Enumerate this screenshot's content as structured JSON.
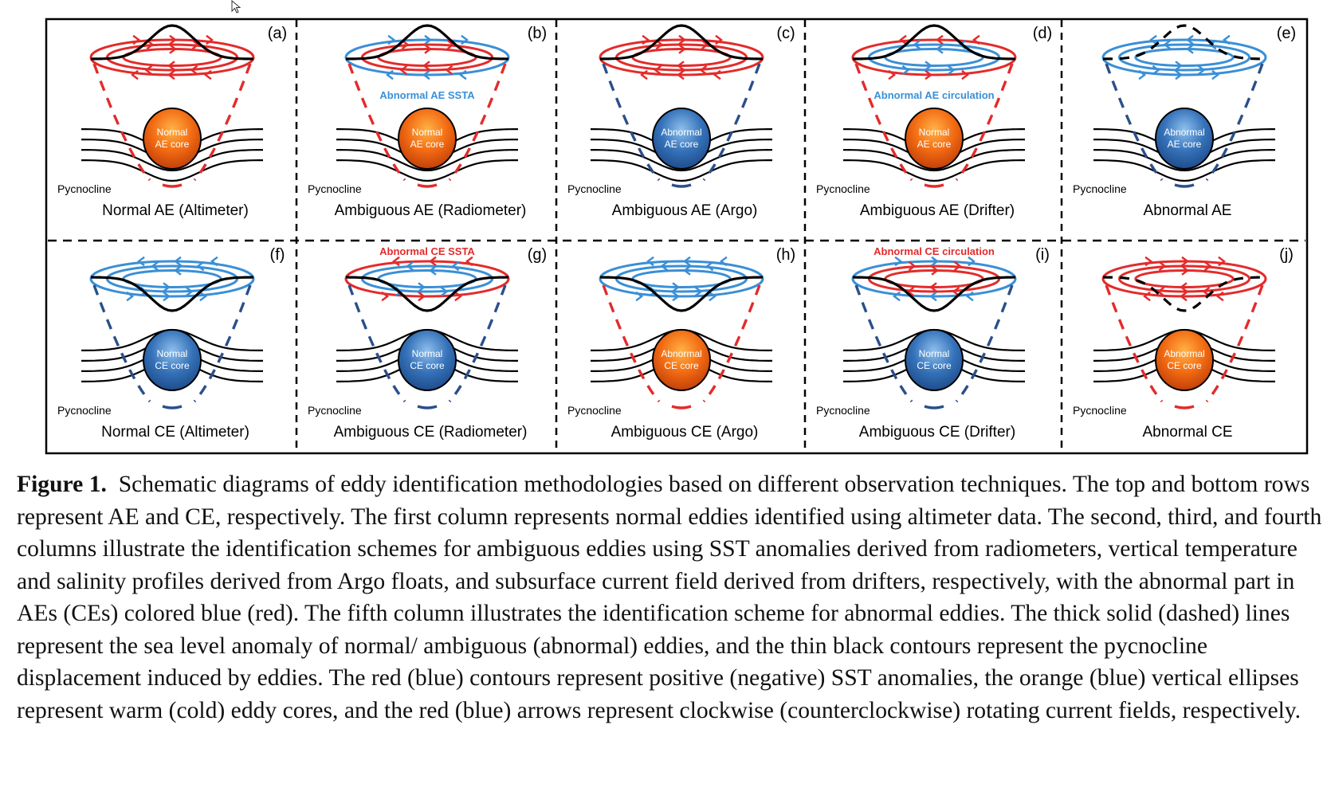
{
  "figure": {
    "top_row": [
      {
        "letter": "(a)",
        "title": "Normal AE (Altimeter)",
        "core_label_1": "Normal",
        "core_label_2": "AE core",
        "pycnocline_label": "Pycnocline",
        "annotation": ""
      },
      {
        "letter": "(b)",
        "title": "Ambiguous AE (Radiometer)",
        "core_label_1": "Normal",
        "core_label_2": "AE core",
        "pycnocline_label": "Pycnocline",
        "annotation": "Abnormal AE SSTA"
      },
      {
        "letter": "(c)",
        "title": "Ambiguous AE (Argo)",
        "core_label_1": "Abnormal",
        "core_label_2": "AE core",
        "pycnocline_label": "Pycnocline",
        "annotation": ""
      },
      {
        "letter": "(d)",
        "title": "Ambiguous AE (Drifter)",
        "core_label_1": "Normal",
        "core_label_2": "AE core",
        "pycnocline_label": "Pycnocline",
        "annotation": "Abnormal AE circulation"
      },
      {
        "letter": "(e)",
        "title": "Abnormal AE",
        "core_label_1": "Abnormal",
        "core_label_2": "AE core",
        "pycnocline_label": "Pycnocline",
        "annotation": ""
      }
    ],
    "bottom_row": [
      {
        "letter": "(f)",
        "title": "Normal CE (Altimeter)",
        "core_label_1": "Normal",
        "core_label_2": "CE core",
        "pycnocline_label": "Pycnocline",
        "annotation": ""
      },
      {
        "letter": "(g)",
        "title": "Ambiguous CE (Radiometer)",
        "core_label_1": "Normal",
        "core_label_2": "CE core",
        "pycnocline_label": "Pycnocline",
        "annotation": "Abnormal CE SSTA"
      },
      {
        "letter": "(h)",
        "title": "Ambiguous CE (Argo)",
        "core_label_1": "Abnormal",
        "core_label_2": "CE core",
        "pycnocline_label": "Pycnocline",
        "annotation": ""
      },
      {
        "letter": "(i)",
        "title": "Ambiguous CE (Drifter)",
        "core_label_1": "Normal",
        "core_label_2": "CE core",
        "pycnocline_label": "Pycnocline",
        "annotation": "Abnormal CE circulation"
      },
      {
        "letter": "(j)",
        "title": "Abnormal CE",
        "core_label_1": "Abnormal",
        "core_label_2": "CE core",
        "pycnocline_label": "Pycnocline",
        "annotation": ""
      }
    ]
  },
  "colors": {
    "red": "#e32b2b",
    "blue": "#3a8fd6",
    "dark_blue": "#2a4f8a",
    "warm_core": "#f06a10",
    "cold_core": "#2f6fb8"
  },
  "caption": {
    "label": "Figure 1.",
    "text": "Schematic diagrams of eddy identification methodologies based on different observation techniques. The top and bottom rows represent AE and CE, respectively. The first column represents normal eddies identified using altimeter data. The second, third, and fourth columns illustrate the identification schemes for ambiguous eddies using SST anomalies derived from radiometers, vertical temperature and salinity profiles derived from Argo floats, and subsurface current field derived from drifters, respectively, with the abnormal part in AEs (CEs) colored blue (red). The fifth column illustrates the identification scheme for abnormal eddies. The thick solid (dashed) lines represent the sea level anomaly of normal/ ambiguous (abnormal) eddies, and the thin black contours represent the pycnocline displacement induced by eddies. The red (blue) contours represent positive (negative) SST anomalies, the orange (blue) vertical ellipses represent warm (cold) eddy cores, and the red (blue) arrows represent clockwise (counterclockwise) rotating current fields, respectively."
  }
}
